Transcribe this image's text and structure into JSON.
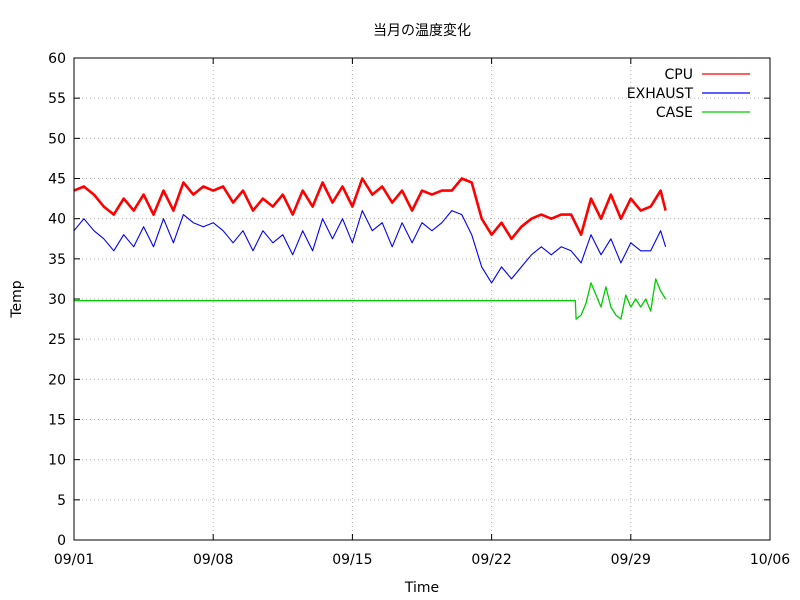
{
  "chart_data": {
    "type": "line",
    "title": "当月の温度変化",
    "xlabel": "Time",
    "ylabel": "Temp",
    "ylim": [
      0,
      60
    ],
    "yticks": [
      0,
      5,
      10,
      15,
      20,
      25,
      30,
      35,
      40,
      45,
      50,
      55,
      60
    ],
    "xlim": [
      "09/01",
      "10/06"
    ],
    "xticks": [
      "09/01",
      "09/08",
      "09/15",
      "09/22",
      "09/29",
      "10/06"
    ],
    "grid": true,
    "legend_position": "top-right",
    "series": [
      {
        "name": "CPU",
        "color": "#ff0000",
        "x": [
          "09/01 00:00",
          "09/01 12:00",
          "09/02 00:00",
          "09/02 12:00",
          "09/03 00:00",
          "09/03 12:00",
          "09/04 00:00",
          "09/04 12:00",
          "09/05 00:00",
          "09/05 12:00",
          "09/06 00:00",
          "09/06 12:00",
          "09/07 00:00",
          "09/07 12:00",
          "09/08 00:00",
          "09/08 12:00",
          "09/09 00:00",
          "09/09 12:00",
          "09/10 00:00",
          "09/10 12:00",
          "09/11 00:00",
          "09/11 12:00",
          "09/12 00:00",
          "09/12 12:00",
          "09/13 00:00",
          "09/13 12:00",
          "09/14 00:00",
          "09/14 12:00",
          "09/15 00:00",
          "09/15 12:00",
          "09/16 00:00",
          "09/16 12:00",
          "09/17 00:00",
          "09/17 12:00",
          "09/18 00:00",
          "09/18 12:00",
          "09/19 00:00",
          "09/19 12:00",
          "09/20 00:00",
          "09/20 12:00",
          "09/21 00:00",
          "09/21 12:00",
          "09/22 00:00",
          "09/22 12:00",
          "09/23 00:00",
          "09/23 12:00",
          "09/24 00:00",
          "09/24 12:00",
          "09/25 00:00",
          "09/25 12:00",
          "09/26 00:00",
          "09/26 12:00",
          "09/27 00:00",
          "09/27 12:00",
          "09/28 00:00",
          "09/28 12:00",
          "09/29 00:00",
          "09/29 12:00",
          "09/30 00:00",
          "09/30 12:00",
          "09/30 18:00"
        ],
        "values": [
          43.5,
          44.0,
          43.0,
          41.5,
          40.5,
          42.5,
          41.0,
          43.0,
          40.5,
          43.5,
          41.0,
          44.5,
          43.0,
          44.0,
          43.5,
          44.0,
          42.0,
          43.5,
          41.0,
          42.5,
          41.5,
          43.0,
          40.5,
          43.5,
          41.5,
          44.5,
          42.0,
          44.0,
          41.5,
          45.0,
          43.0,
          44.0,
          42.0,
          43.5,
          41.0,
          43.5,
          43.0,
          43.5,
          43.5,
          45.0,
          44.5,
          40.0,
          38.0,
          39.5,
          37.5,
          39.0,
          40.0,
          40.5,
          40.0,
          40.5,
          40.5,
          38.0,
          42.5,
          40.0,
          43.0,
          40.0,
          42.5,
          41.0,
          41.5,
          43.5,
          41.0
        ]
      },
      {
        "name": "EXHAUST",
        "color": "#0000ff",
        "x": [
          "09/01 00:00",
          "09/01 12:00",
          "09/02 00:00",
          "09/02 12:00",
          "09/03 00:00",
          "09/03 12:00",
          "09/04 00:00",
          "09/04 12:00",
          "09/05 00:00",
          "09/05 12:00",
          "09/06 00:00",
          "09/06 12:00",
          "09/07 00:00",
          "09/07 12:00",
          "09/08 00:00",
          "09/08 12:00",
          "09/09 00:00",
          "09/09 12:00",
          "09/10 00:00",
          "09/10 12:00",
          "09/11 00:00",
          "09/11 12:00",
          "09/12 00:00",
          "09/12 12:00",
          "09/13 00:00",
          "09/13 12:00",
          "09/14 00:00",
          "09/14 12:00",
          "09/15 00:00",
          "09/15 12:00",
          "09/16 00:00",
          "09/16 12:00",
          "09/17 00:00",
          "09/17 12:00",
          "09/18 00:00",
          "09/18 12:00",
          "09/19 00:00",
          "09/19 12:00",
          "09/20 00:00",
          "09/20 12:00",
          "09/21 00:00",
          "09/21 12:00",
          "09/22 00:00",
          "09/22 12:00",
          "09/23 00:00",
          "09/23 12:00",
          "09/24 00:00",
          "09/24 12:00",
          "09/25 00:00",
          "09/25 12:00",
          "09/26 00:00",
          "09/26 12:00",
          "09/27 00:00",
          "09/27 12:00",
          "09/28 00:00",
          "09/28 12:00",
          "09/29 00:00",
          "09/29 12:00",
          "09/30 00:00",
          "09/30 12:00",
          "09/30 18:00"
        ],
        "values": [
          38.5,
          40.0,
          38.5,
          37.5,
          36.0,
          38.0,
          36.5,
          39.0,
          36.5,
          40.0,
          37.0,
          40.5,
          39.5,
          39.0,
          39.5,
          38.5,
          37.0,
          38.5,
          36.0,
          38.5,
          37.0,
          38.0,
          35.5,
          38.5,
          36.0,
          40.0,
          37.5,
          40.0,
          37.0,
          41.0,
          38.5,
          39.5,
          36.5,
          39.5,
          37.0,
          39.5,
          38.5,
          39.5,
          41.0,
          40.5,
          38.0,
          34.0,
          32.0,
          34.0,
          32.5,
          34.0,
          35.5,
          36.5,
          35.5,
          36.5,
          36.0,
          34.5,
          38.0,
          35.5,
          37.5,
          34.5,
          37.0,
          36.0,
          36.0,
          38.5,
          36.5
        ]
      },
      {
        "name": "CASE",
        "color": "#00cc00",
        "x": [
          "09/01 00:00",
          "09/26 05:00",
          "09/26 06:00",
          "09/26 12:00",
          "09/26 18:00",
          "09/27 00:00",
          "09/27 06:00",
          "09/27 12:00",
          "09/27 18:00",
          "09/28 00:00",
          "09/28 06:00",
          "09/28 12:00",
          "09/28 18:00",
          "09/29 00:00",
          "09/29 06:00",
          "09/29 12:00",
          "09/29 18:00",
          "09/30 00:00",
          "09/30 06:00",
          "09/30 12:00",
          "09/30 18:00"
        ],
        "values": [
          29.8,
          29.8,
          27.5,
          28.0,
          29.5,
          32.0,
          30.5,
          29.0,
          31.5,
          29.0,
          28.0,
          27.5,
          30.5,
          29.0,
          30.0,
          29.0,
          30.0,
          28.5,
          32.5,
          31.0,
          30.0
        ]
      }
    ]
  }
}
